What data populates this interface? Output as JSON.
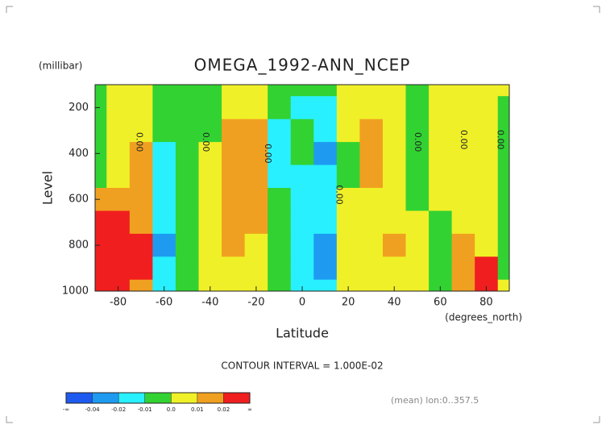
{
  "chart_data": {
    "type": "contour",
    "title": "OMEGA_1992-ANN_NCEP",
    "y_unit": "(millibar)",
    "y_label": "Level",
    "x_label": "Latitude",
    "x_unit": "(degrees_north)",
    "contour_interval": "CONTOUR INTERVAL = 1.000E-02",
    "note": "(mean) lon:0..357.5",
    "x": [
      -90,
      -80,
      -70,
      -60,
      -50,
      -40,
      -30,
      -20,
      -10,
      0,
      10,
      20,
      30,
      40,
      50,
      60,
      70,
      80,
      90
    ],
    "y": [
      100,
      200,
      300,
      400,
      500,
      600,
      700,
      800,
      900,
      1000
    ],
    "z": [
      [
        -0.005,
        0.005,
        0.005,
        -0.005,
        -0.005,
        -0.005,
        0.005,
        0.005,
        -0.005,
        -0.005,
        -0.005,
        0.005,
        0.005,
        0.005,
        -0.005,
        0.005,
        0.005,
        0.005,
        0.005
      ],
      [
        -0.005,
        0.005,
        0.005,
        -0.005,
        -0.005,
        -0.005,
        0.005,
        0.005,
        -0.005,
        -0.015,
        -0.015,
        0.005,
        0.005,
        0.005,
        -0.005,
        0.005,
        0.005,
        0.005,
        -0.005
      ],
      [
        -0.005,
        0.005,
        0.005,
        -0.005,
        -0.005,
        -0.005,
        0.015,
        0.015,
        -0.015,
        -0.005,
        -0.015,
        0.005,
        0.015,
        0.005,
        -0.005,
        0.005,
        0.005,
        0.005,
        -0.005
      ],
      [
        -0.005,
        0.005,
        0.015,
        -0.015,
        -0.005,
        0.005,
        0.015,
        0.015,
        -0.015,
        -0.005,
        -0.025,
        -0.005,
        0.015,
        0.005,
        -0.005,
        0.005,
        0.005,
        0.005,
        -0.005
      ],
      [
        -0.005,
        0.005,
        0.015,
        -0.015,
        -0.005,
        0.005,
        0.015,
        0.015,
        -0.015,
        -0.015,
        -0.015,
        -0.005,
        0.015,
        0.005,
        -0.005,
        0.005,
        0.005,
        0.005,
        -0.005
      ],
      [
        0.015,
        0.015,
        0.015,
        -0.015,
        -0.005,
        0.005,
        0.015,
        0.015,
        -0.005,
        -0.015,
        -0.015,
        0.005,
        0.005,
        0.005,
        -0.005,
        0.005,
        0.005,
        0.005,
        -0.005
      ],
      [
        0.03,
        0.03,
        0.015,
        -0.015,
        -0.005,
        0.005,
        0.015,
        0.015,
        -0.005,
        -0.015,
        -0.015,
        0.005,
        0.005,
        0.005,
        0.005,
        -0.005,
        0.005,
        0.005,
        -0.005
      ],
      [
        0.03,
        0.03,
        0.03,
        -0.025,
        -0.005,
        0.005,
        0.015,
        0.005,
        -0.005,
        -0.015,
        -0.025,
        0.005,
        0.005,
        0.015,
        0.005,
        -0.005,
        0.015,
        0.005,
        -0.005
      ],
      [
        0.03,
        0.03,
        0.03,
        -0.015,
        -0.005,
        0.005,
        0.005,
        0.005,
        -0.005,
        -0.015,
        -0.025,
        0.005,
        0.005,
        0.005,
        0.005,
        -0.005,
        0.015,
        0.03,
        -0.005
      ],
      [
        0.03,
        0.03,
        0.015,
        -0.015,
        -0.005,
        0.005,
        0.005,
        0.005,
        -0.005,
        -0.015,
        -0.015,
        0.005,
        0.005,
        0.005,
        0.005,
        -0.005,
        0.015,
        0.03,
        0.005
      ]
    ],
    "xlim": [
      -90,
      90
    ],
    "ylim": [
      1000,
      100
    ],
    "xticks": [
      -80,
      -60,
      -40,
      -20,
      0,
      20,
      40,
      60,
      80
    ],
    "yticks": [
      200,
      400,
      600,
      800,
      1000
    ],
    "levels": [
      -0.04,
      -0.02,
      -0.01,
      {
        "value": 0,
        "label": "0.0"
      },
      0.01,
      0.02
    ],
    "level_ends": [
      "-∞",
      "∞"
    ],
    "colors": [
      "#1e5af0",
      "#1e9bf0",
      "#28f0ff",
      "#32d232",
      "#f0f028",
      "#f0a020",
      "#f01e1e"
    ],
    "contour_labels": [
      {
        "text": "0.00",
        "x": -71,
        "y": 350
      },
      {
        "text": "0.00",
        "x": -42,
        "y": 350
      },
      {
        "text": "0.00",
        "x": -15,
        "y": 400
      },
      {
        "text": "0.00",
        "x": 16,
        "y": 580
      },
      {
        "text": "0.00",
        "x": 50,
        "y": 350
      },
      {
        "text": "0.00",
        "x": 70,
        "y": 340
      },
      {
        "text": "0.00",
        "x": 86,
        "y": 340
      }
    ]
  }
}
